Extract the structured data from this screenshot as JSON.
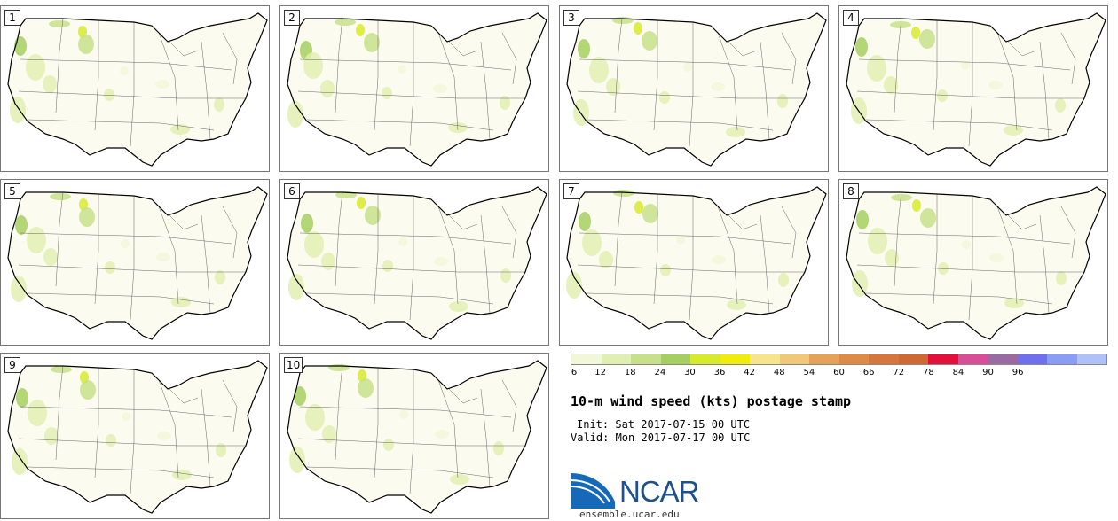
{
  "title": "10-m wind speed (kts) postage stamp",
  "init_text": "Init: Sat 2017-07-15 00 UTC",
  "valid_text": "Valid: Mon 2017-07-17 00 UTC",
  "logo": {
    "text": "NCAR",
    "url": "ensemble.ucar.edu"
  },
  "members": [
    {
      "label": "1"
    },
    {
      "label": "2"
    },
    {
      "label": "3"
    },
    {
      "label": "4"
    },
    {
      "label": "5"
    },
    {
      "label": "6"
    },
    {
      "label": "7"
    },
    {
      "label": "8"
    },
    {
      "label": "9"
    },
    {
      "label": "10"
    }
  ],
  "colorbar": {
    "ticks": [
      "6",
      "12",
      "18",
      "24",
      "30",
      "36",
      "42",
      "48",
      "54",
      "60",
      "66",
      "72",
      "78",
      "84",
      "90",
      "96"
    ],
    "colors": [
      "#f3f7d9",
      "#e2efb2",
      "#c7e08a",
      "#a6cf62",
      "#d7ea2b",
      "#f2ec0e",
      "#f6e58a",
      "#f0c878",
      "#e6a257",
      "#df8a45",
      "#d6763a",
      "#cf6832",
      "#e4103c",
      "#d84f98",
      "#9c6aa3",
      "#6f6ff0",
      "#8a9cf6",
      "#b0c0f8"
    ]
  }
}
